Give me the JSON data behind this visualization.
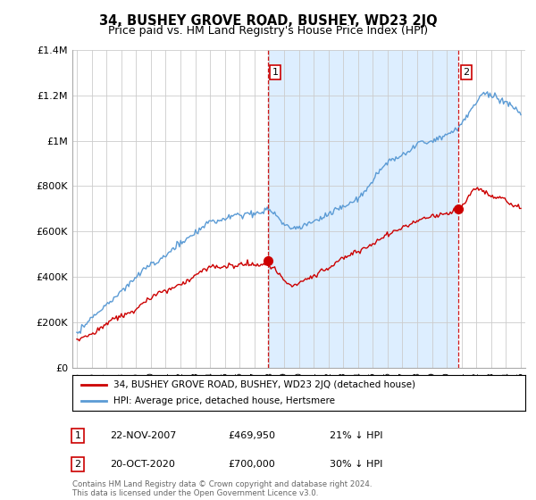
{
  "title": "34, BUSHEY GROVE ROAD, BUSHEY, WD23 2JQ",
  "subtitle": "Price paid vs. HM Land Registry's House Price Index (HPI)",
  "ylim": [
    0,
    1400000
  ],
  "yticks": [
    0,
    200000,
    400000,
    600000,
    800000,
    1000000,
    1200000,
    1400000
  ],
  "ytick_labels": [
    "£0",
    "£200K",
    "£400K",
    "£600K",
    "£800K",
    "£1M",
    "£1.2M",
    "£1.4M"
  ],
  "x_start_year": 1995,
  "x_end_year": 2025,
  "hpi_color": "#5b9bd5",
  "hpi_fill_color": "#ddeeff",
  "price_color": "#cc0000",
  "vline_color": "#cc0000",
  "marker1_year": 2007.9,
  "marker1_price": 469950,
  "marker2_year": 2020.8,
  "marker2_price": 700000,
  "legend_line1": "34, BUSHEY GROVE ROAD, BUSHEY, WD23 2JQ (detached house)",
  "legend_line2": "HPI: Average price, detached house, Hertsmere",
  "annotation1_num": "1",
  "annotation1_date": "22-NOV-2007",
  "annotation1_price": "£469,950",
  "annotation1_pct": "21% ↓ HPI",
  "annotation2_num": "2",
  "annotation2_date": "20-OCT-2020",
  "annotation2_price": "£700,000",
  "annotation2_pct": "30% ↓ HPI",
  "footer": "Contains HM Land Registry data © Crown copyright and database right 2024.\nThis data is licensed under the Open Government Licence v3.0.",
  "background_color": "#ffffff",
  "grid_color": "#cccccc"
}
